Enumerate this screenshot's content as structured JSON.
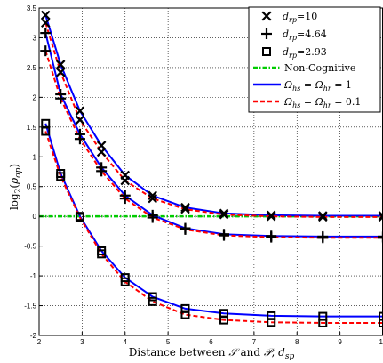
{
  "chart_data": {
    "type": "line",
    "xlabel": "Distance between S and P, d_sp",
    "ylabel": "log2(ρ_op)",
    "xlim": [
      2,
      10
    ],
    "ylim": [
      -2,
      3.5
    ],
    "xticks": [
      "2",
      "3",
      "4",
      "5",
      "6",
      "7",
      "8",
      "9",
      "10"
    ],
    "yticks": [
      "-2",
      "-1.5",
      "-1",
      "-0.5",
      "0",
      "0.5",
      "1",
      "1.5",
      "2",
      "2.5",
      "3",
      "3.5"
    ],
    "grid": true,
    "legend_position": "top-right",
    "legend": [
      {
        "label": "d_rp=10",
        "style": "x-marker"
      },
      {
        "label": "d_rp=4.64",
        "style": "plus-marker"
      },
      {
        "label": "d_rp=2.93",
        "style": "square-marker"
      },
      {
        "label": "Non-Cognitive",
        "style": "green-dashdot"
      },
      {
        "label": "Ω_hs = Ω_hr = 1",
        "style": "blue-solid"
      },
      {
        "label": "Ω_hs = Ω_hr = 0.1",
        "style": "red-dashed"
      }
    ],
    "colors": {
      "blue": "#0000ff",
      "red": "#ff0000",
      "green": "#00cc00"
    },
    "series": [
      {
        "group": "d_rp=10",
        "variant": "Ω=1",
        "x": [
          2.15,
          2.5,
          2.95,
          3.45,
          4.0,
          4.64,
          5.4,
          6.3,
          7.4,
          8.6,
          10.0
        ],
        "y": [
          3.38,
          2.55,
          1.77,
          1.19,
          0.69,
          0.35,
          0.15,
          0.05,
          0.02,
          0.01,
          0.01
        ]
      },
      {
        "group": "d_rp=10",
        "variant": "Ω=0.1",
        "x": [
          2.15,
          2.5,
          2.95,
          3.45,
          4.0,
          4.64,
          5.4,
          6.3,
          7.4,
          8.6,
          10.0
        ],
        "y": [
          3.25,
          2.42,
          1.62,
          1.08,
          0.6,
          0.3,
          0.12,
          0.03,
          0.0,
          -0.01,
          -0.01
        ]
      },
      {
        "group": "d_rp=4.64",
        "variant": "Ω=1",
        "x": [
          2.15,
          2.5,
          2.95,
          3.45,
          4.0,
          4.64,
          5.4,
          6.3,
          7.4,
          8.6,
          10.0
        ],
        "y": [
          3.08,
          2.05,
          1.38,
          0.82,
          0.35,
          0.02,
          -0.2,
          -0.3,
          -0.33,
          -0.34,
          -0.34
        ]
      },
      {
        "group": "d_rp=4.64",
        "variant": "Ω=0.1",
        "x": [
          2.15,
          2.5,
          2.95,
          3.45,
          4.0,
          4.64,
          5.4,
          6.3,
          7.4,
          8.6,
          10.0
        ],
        "y": [
          2.78,
          1.98,
          1.3,
          0.76,
          0.3,
          -0.02,
          -0.22,
          -0.32,
          -0.35,
          -0.36,
          -0.36
        ]
      },
      {
        "group": "d_rp=2.93",
        "variant": "Ω=1",
        "x": [
          2.15,
          2.5,
          2.95,
          3.45,
          4.0,
          4.64,
          5.4,
          6.3,
          7.4,
          8.6,
          10.0
        ],
        "y": [
          1.56,
          0.72,
          0.0,
          -0.58,
          -1.03,
          -1.35,
          -1.55,
          -1.63,
          -1.67,
          -1.68,
          -1.68
        ]
      },
      {
        "group": "d_rp=2.93",
        "variant": "Ω=0.1",
        "x": [
          2.15,
          2.5,
          2.95,
          3.45,
          4.0,
          4.64,
          5.4,
          6.3,
          7.4,
          8.6,
          10.0
        ],
        "y": [
          1.43,
          0.67,
          -0.02,
          -0.63,
          -1.1,
          -1.43,
          -1.65,
          -1.74,
          -1.78,
          -1.79,
          -1.79
        ]
      },
      {
        "group": "Non-Cognitive",
        "variant": "baseline",
        "x": [
          2.0,
          10.0
        ],
        "y": [
          0.0,
          0.0
        ]
      }
    ]
  }
}
